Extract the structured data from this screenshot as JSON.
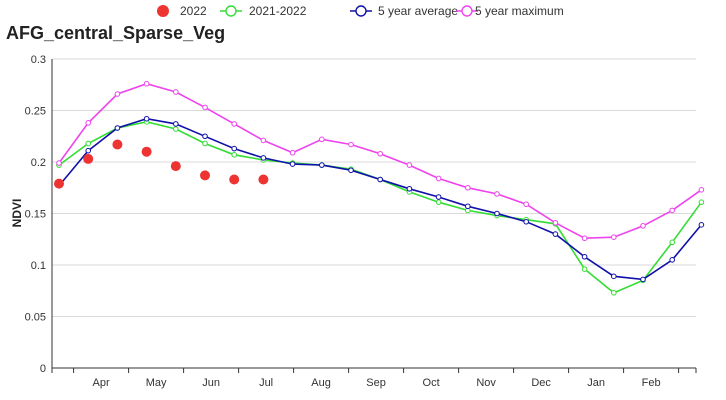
{
  "chart_data": {
    "type": "line",
    "title": "AFG_central_Sparse_Veg",
    "xlabel": "",
    "ylabel": "NDVI",
    "ylim": [
      0,
      0.3
    ],
    "y_ticks": [
      "0",
      "0.05",
      "0.1",
      "0.15",
      "0.2",
      "0.25",
      "0.3"
    ],
    "x_tick_labels": [
      "Apr",
      "May",
      "Jun",
      "Jul",
      "Aug",
      "Sep",
      "Oct",
      "Nov",
      "Dec",
      "Jan",
      "Feb"
    ],
    "grid": "horizontal",
    "legend_position": "top",
    "series": [
      {
        "name": "2022",
        "style": "dots",
        "color": "#ee3333",
        "values": [
          0.179,
          0.203,
          0.217,
          0.21,
          0.196,
          0.187,
          0.183,
          0.183
        ]
      },
      {
        "name": "2021-2022",
        "style": "line",
        "color": "#33dd33",
        "values": [
          0.197,
          0.218,
          0.233,
          0.239,
          0.232,
          0.218,
          0.207,
          0.202,
          0.199,
          0.197,
          0.193,
          0.183,
          0.171,
          0.161,
          0.153,
          0.148,
          0.144,
          0.14,
          0.096,
          0.073,
          0.085,
          0.122,
          0.161
        ]
      },
      {
        "name": "5 year average",
        "style": "line",
        "color": "#1111aa",
        "values": [
          0.177,
          0.211,
          0.233,
          0.242,
          0.237,
          0.225,
          0.213,
          0.204,
          0.198,
          0.197,
          0.192,
          0.183,
          0.174,
          0.166,
          0.157,
          0.15,
          0.142,
          0.13,
          0.108,
          0.089,
          0.086,
          0.105,
          0.139
        ]
      },
      {
        "name": "5 year maximum",
        "style": "line",
        "color": "#ee44ee",
        "values": [
          0.199,
          0.238,
          0.266,
          0.276,
          0.268,
          0.253,
          0.237,
          0.221,
          0.209,
          0.222,
          0.217,
          0.208,
          0.197,
          0.184,
          0.175,
          0.169,
          0.159,
          0.141,
          0.126,
          0.127,
          0.138,
          0.153,
          0.173
        ]
      }
    ]
  }
}
